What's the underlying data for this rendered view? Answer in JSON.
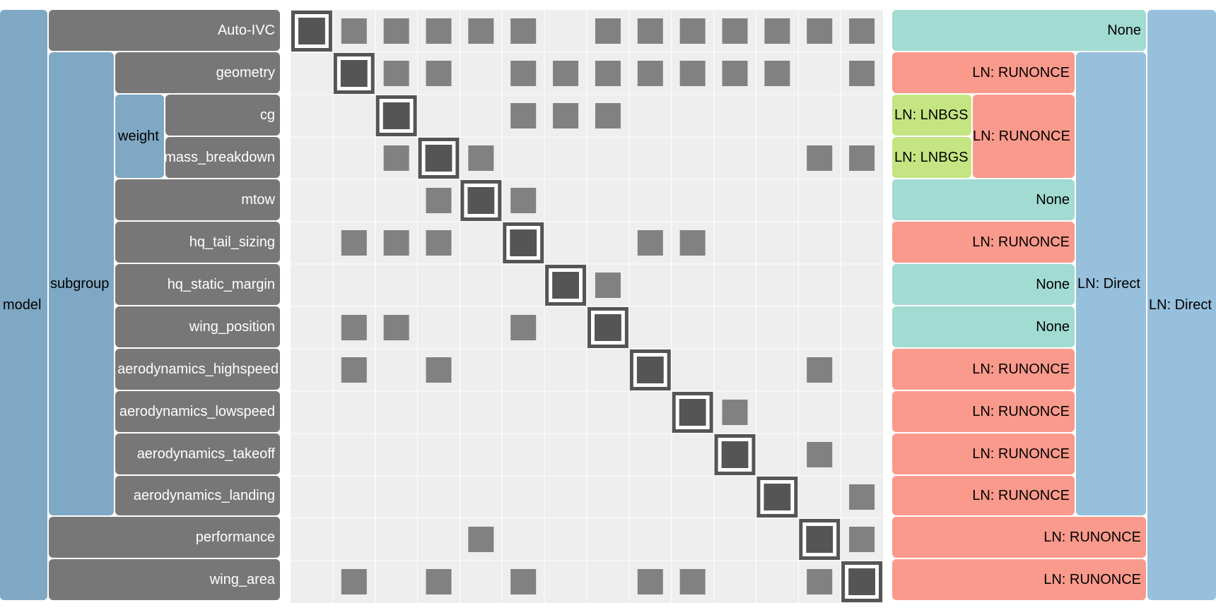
{
  "tree": {
    "model": "model",
    "subgroup": "subgroup",
    "weight": "weight",
    "systems": [
      "Auto-IVC",
      "geometry",
      "cg",
      "mass_breakdown",
      "mtow",
      "hq_tail_sizing",
      "hq_static_margin",
      "wing_position",
      "aerodynamics_highspeed",
      "aerodynamics_lowspeed",
      "aerodynamics_takeoff",
      "aerodynamics_landing",
      "performance",
      "wing_area"
    ]
  },
  "solvers": {
    "auto_ivc": "None",
    "geometry": "LN: RUNONCE",
    "cg": "LN: LNBGS",
    "mass_breakdown": "LN: LNBGS",
    "weight": "LN: RUNONCE",
    "mtow": "None",
    "hq_tail_sizing": "LN: RUNONCE",
    "hq_static_margin": "None",
    "wing_position": "None",
    "aerodynamics_highspeed": "LN: RUNONCE",
    "aerodynamics_lowspeed": "LN: RUNONCE",
    "aerodynamics_takeoff": "LN: RUNONCE",
    "aerodynamics_landing": "LN: RUNONCE",
    "subgroup": "LN: Direct",
    "performance": "LN: RUNONCE",
    "wing_area": "LN: RUNONCE",
    "model": "LN: Direct"
  },
  "colors": {
    "model_bg": "#7fa8c4",
    "system_bg": "#777777",
    "matrix_bg": "#eeeeee",
    "grid_line": "#ffffff",
    "diag_frame": "#555555",
    "cell_fill": "#818181",
    "solver_none": "#a1dbd1",
    "solver_runonce": "#fa9a8c",
    "solver_lnbgs": "#c4e582",
    "solver_direct": "#96c0dc"
  },
  "matrix": {
    "size": 14,
    "connections": [
      [
        0,
        1
      ],
      [
        0,
        2
      ],
      [
        0,
        3
      ],
      [
        0,
        4
      ],
      [
        0,
        5
      ],
      [
        0,
        7
      ],
      [
        0,
        8
      ],
      [
        0,
        9
      ],
      [
        0,
        10
      ],
      [
        0,
        11
      ],
      [
        0,
        12
      ],
      [
        0,
        13
      ],
      [
        1,
        2
      ],
      [
        1,
        3
      ],
      [
        1,
        5
      ],
      [
        1,
        6
      ],
      [
        1,
        7
      ],
      [
        1,
        8
      ],
      [
        1,
        9
      ],
      [
        1,
        10
      ],
      [
        1,
        11
      ],
      [
        1,
        13
      ],
      [
        2,
        5
      ],
      [
        2,
        6
      ],
      [
        2,
        7
      ],
      [
        3,
        2
      ],
      [
        3,
        4
      ],
      [
        3,
        12
      ],
      [
        3,
        13
      ],
      [
        4,
        3
      ],
      [
        4,
        5
      ],
      [
        5,
        1
      ],
      [
        5,
        2
      ],
      [
        5,
        3
      ],
      [
        5,
        8
      ],
      [
        5,
        9
      ],
      [
        6,
        7
      ],
      [
        7,
        1
      ],
      [
        7,
        2
      ],
      [
        7,
        5
      ],
      [
        8,
        1
      ],
      [
        8,
        3
      ],
      [
        8,
        12
      ],
      [
        9,
        10
      ],
      [
        10,
        12
      ],
      [
        11,
        13
      ],
      [
        12,
        4
      ],
      [
        12,
        13
      ],
      [
        13,
        1
      ],
      [
        13,
        3
      ],
      [
        13,
        5
      ],
      [
        13,
        8
      ],
      [
        13,
        9
      ],
      [
        13,
        12
      ]
    ]
  }
}
